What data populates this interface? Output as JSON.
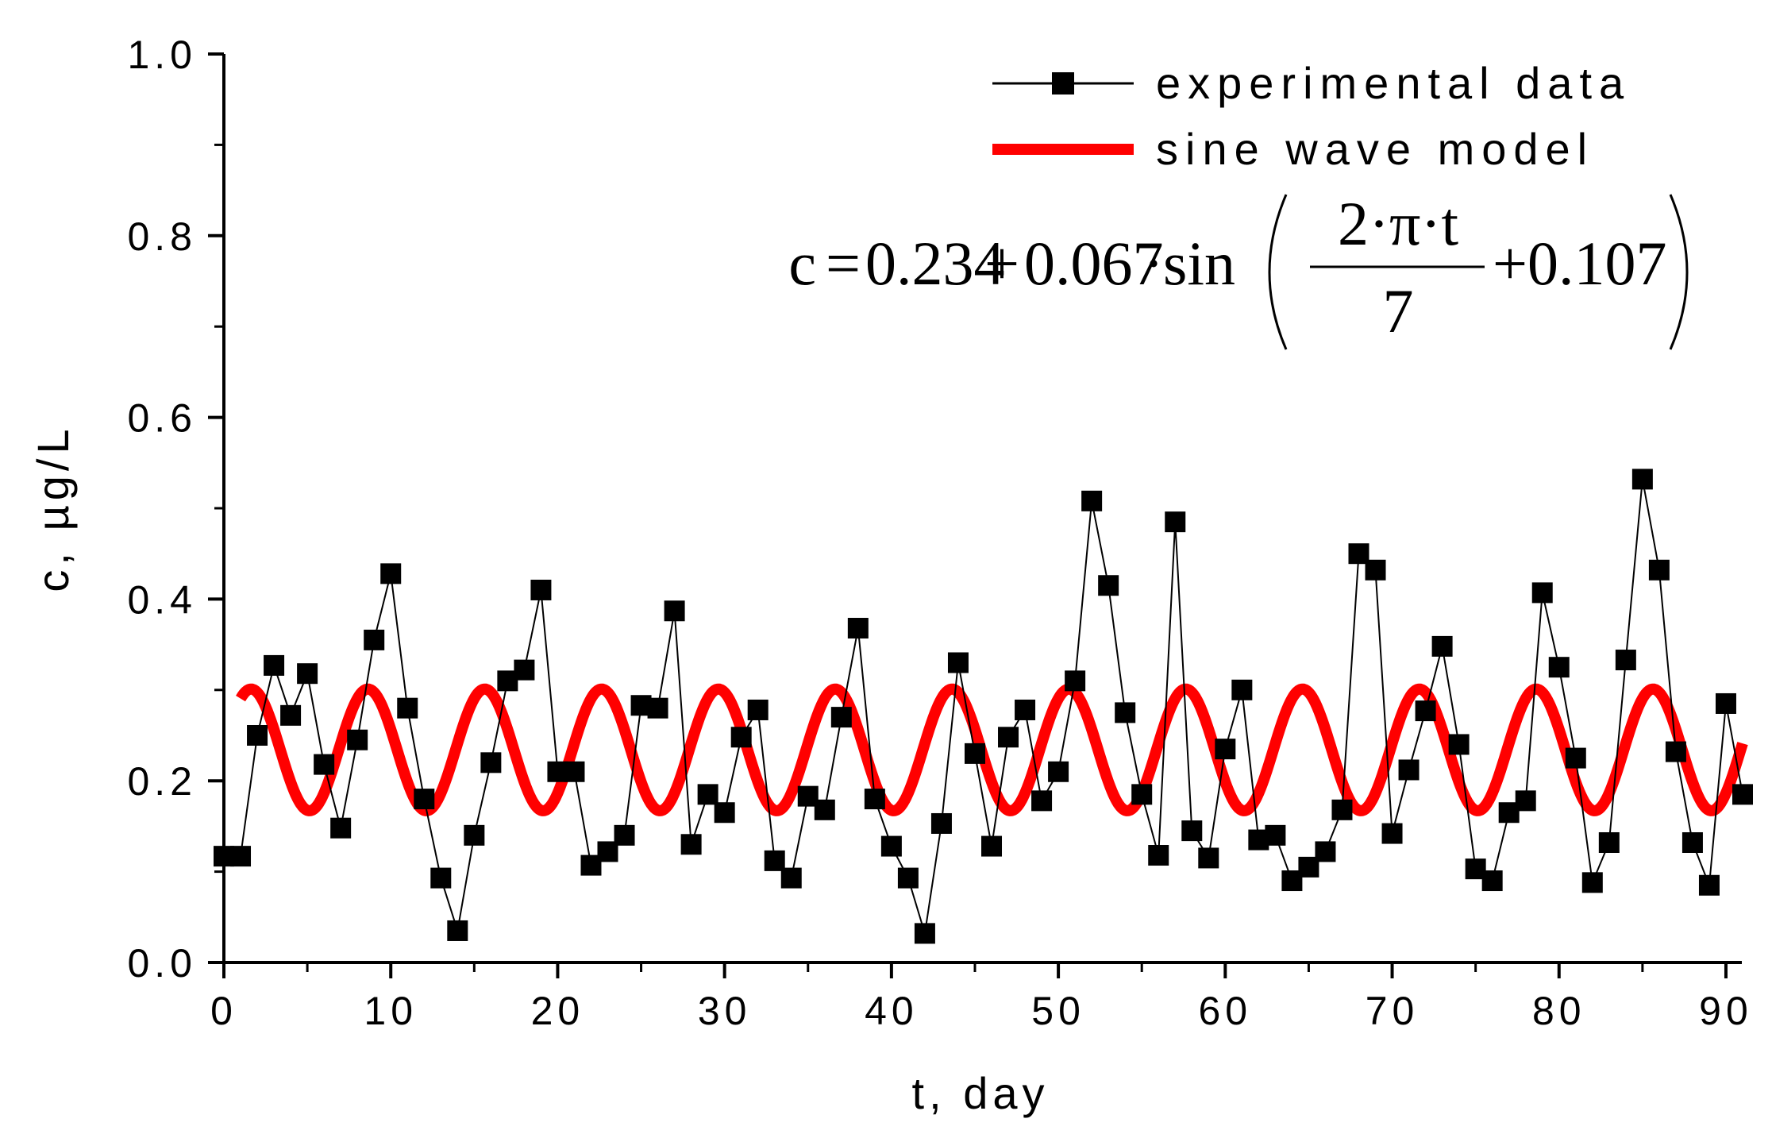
{
  "chart_data": {
    "type": "line",
    "title": "",
    "xlabel": "t, day",
    "ylabel": "c, µg/L",
    "xlim": [
      0,
      91
    ],
    "ylim": [
      0.0,
      1.0
    ],
    "x_ticks": [
      0,
      10,
      20,
      30,
      40,
      50,
      60,
      70,
      80,
      90
    ],
    "x_tick_labels": [
      "0",
      "10",
      "20",
      "30",
      "40",
      "50",
      "60",
      "70",
      "80",
      "90"
    ],
    "y_ticks": [
      0.0,
      0.2,
      0.4,
      0.6,
      0.8,
      1.0
    ],
    "y_tick_labels": [
      "0.0",
      "0.2",
      "0.4",
      "0.6",
      "0.8",
      "1.0"
    ],
    "legend_position": "top-right",
    "series": [
      {
        "name": "experimental data",
        "style": "line+square-markers",
        "color": "#000000",
        "x": [
          0,
          1,
          2,
          3,
          4,
          5,
          6,
          7,
          8,
          9,
          10,
          11,
          12,
          13,
          14,
          15,
          16,
          17,
          18,
          19,
          20,
          21,
          22,
          23,
          24,
          25,
          26,
          27,
          28,
          29,
          30,
          31,
          32,
          33,
          34,
          35,
          36,
          37,
          38,
          39,
          40,
          41,
          42,
          43,
          44,
          45,
          46,
          47,
          48,
          49,
          50,
          51,
          52,
          53,
          54,
          55,
          56,
          57,
          58,
          59,
          60,
          61,
          62,
          63,
          64,
          65,
          66,
          67,
          68,
          69,
          70,
          71,
          72,
          73,
          74,
          75,
          76,
          77,
          78,
          79,
          80,
          81,
          82,
          83,
          84,
          85,
          86,
          87,
          88,
          89,
          90,
          91
        ],
        "y": [
          0.117,
          0.117,
          0.25,
          0.327,
          0.272,
          0.318,
          0.218,
          0.148,
          0.245,
          0.355,
          0.428,
          0.28,
          0.18,
          0.093,
          0.035,
          0.14,
          0.22,
          0.31,
          0.322,
          0.41,
          0.21,
          0.21,
          0.107,
          0.122,
          0.14,
          0.283,
          0.28,
          0.387,
          0.13,
          0.185,
          0.165,
          0.248,
          0.278,
          0.112,
          0.093,
          0.183,
          0.168,
          0.27,
          0.368,
          0.18,
          0.128,
          0.093,
          0.032,
          0.153,
          0.33,
          0.23,
          0.128,
          0.248,
          0.278,
          0.178,
          0.21,
          0.31,
          0.508,
          0.415,
          0.275,
          0.185,
          0.118,
          0.485,
          0.145,
          0.115,
          0.235,
          0.3,
          0.135,
          0.14,
          0.09,
          0.105,
          0.122,
          0.168,
          0.45,
          0.432,
          0.142,
          0.212,
          0.277,
          0.348,
          0.24,
          0.103,
          0.09,
          0.165,
          0.178,
          0.407,
          0.325,
          0.225,
          0.088,
          0.132,
          0.333,
          0.532,
          0.432,
          0.232,
          0.132,
          0.085,
          0.285,
          0.185
        ]
      },
      {
        "name": "sine wave model",
        "style": "thick-line",
        "color": "#ff0000",
        "model": {
          "offset": 0.234,
          "amplitude": 0.067,
          "period": 7,
          "phase": 0.107,
          "t_start": 1,
          "t_end": 91
        }
      }
    ],
    "annotation": {
      "lhs": "c",
      "eq": "=",
      "const": "0.234",
      "plus": "+",
      "amp": "0.067",
      "dot": "·",
      "func": "sin",
      "numerator": "2·π·t",
      "denominator": "7",
      "phase_term": "+0.107"
    }
  }
}
